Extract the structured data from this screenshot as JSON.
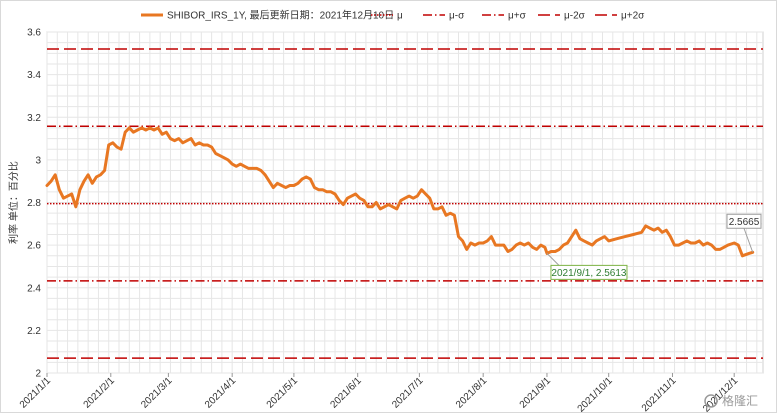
{
  "chart_data": {
    "type": "line",
    "series": [
      {
        "name": "SHIBOR_IRS_1Y, 最后更新日期：2021年12月10日",
        "color": "#e87722",
        "points": [
          [
            "2021-01-01",
            2.88
          ],
          [
            "2021-01-03",
            2.9
          ],
          [
            "2021-01-05",
            2.93
          ],
          [
            "2021-01-07",
            2.86
          ],
          [
            "2021-01-09",
            2.82
          ],
          [
            "2021-01-11",
            2.83
          ],
          [
            "2021-01-13",
            2.84
          ],
          [
            "2021-01-15",
            2.78
          ],
          [
            "2021-01-17",
            2.86
          ],
          [
            "2021-01-19",
            2.9
          ],
          [
            "2021-01-21",
            2.93
          ],
          [
            "2021-01-23",
            2.89
          ],
          [
            "2021-01-25",
            2.92
          ],
          [
            "2021-01-27",
            2.93
          ],
          [
            "2021-01-29",
            2.95
          ],
          [
            "2021-01-31",
            3.07
          ],
          [
            "2021-02-02",
            3.08
          ],
          [
            "2021-02-04",
            3.06
          ],
          [
            "2021-02-06",
            3.05
          ],
          [
            "2021-02-08",
            3.13
          ],
          [
            "2021-02-10",
            3.15
          ],
          [
            "2021-02-12",
            3.13
          ],
          [
            "2021-02-14",
            3.14
          ],
          [
            "2021-02-16",
            3.15
          ],
          [
            "2021-02-18",
            3.14
          ],
          [
            "2021-02-20",
            3.15
          ],
          [
            "2021-02-22",
            3.14
          ],
          [
            "2021-02-24",
            3.15
          ],
          [
            "2021-02-26",
            3.12
          ],
          [
            "2021-02-28",
            3.13
          ],
          [
            "2021-03-02",
            3.1
          ],
          [
            "2021-03-04",
            3.09
          ],
          [
            "2021-03-06",
            3.1
          ],
          [
            "2021-03-08",
            3.08
          ],
          [
            "2021-03-10",
            3.09
          ],
          [
            "2021-03-12",
            3.1
          ],
          [
            "2021-03-14",
            3.07
          ],
          [
            "2021-03-16",
            3.08
          ],
          [
            "2021-03-18",
            3.07
          ],
          [
            "2021-03-20",
            3.07
          ],
          [
            "2021-03-22",
            3.06
          ],
          [
            "2021-03-24",
            3.03
          ],
          [
            "2021-03-26",
            3.02
          ],
          [
            "2021-03-28",
            3.01
          ],
          [
            "2021-03-30",
            3.0
          ],
          [
            "2021-04-01",
            2.98
          ],
          [
            "2021-04-03",
            2.97
          ],
          [
            "2021-04-05",
            2.98
          ],
          [
            "2021-04-07",
            2.97
          ],
          [
            "2021-04-09",
            2.96
          ],
          [
            "2021-04-11",
            2.96
          ],
          [
            "2021-04-13",
            2.96
          ],
          [
            "2021-04-15",
            2.95
          ],
          [
            "2021-04-17",
            2.93
          ],
          [
            "2021-04-19",
            2.9
          ],
          [
            "2021-04-21",
            2.87
          ],
          [
            "2021-04-23",
            2.89
          ],
          [
            "2021-04-25",
            2.88
          ],
          [
            "2021-04-27",
            2.87
          ],
          [
            "2021-04-29",
            2.88
          ],
          [
            "2021-05-01",
            2.88
          ],
          [
            "2021-05-03",
            2.89
          ],
          [
            "2021-05-05",
            2.91
          ],
          [
            "2021-05-07",
            2.92
          ],
          [
            "2021-05-09",
            2.91
          ],
          [
            "2021-05-11",
            2.87
          ],
          [
            "2021-05-13",
            2.86
          ],
          [
            "2021-05-15",
            2.86
          ],
          [
            "2021-05-17",
            2.85
          ],
          [
            "2021-05-19",
            2.85
          ],
          [
            "2021-05-21",
            2.84
          ],
          [
            "2021-05-23",
            2.81
          ],
          [
            "2021-05-25",
            2.79
          ],
          [
            "2021-05-27",
            2.82
          ],
          [
            "2021-05-29",
            2.83
          ],
          [
            "2021-05-31",
            2.84
          ],
          [
            "2021-06-02",
            2.82
          ],
          [
            "2021-06-04",
            2.81
          ],
          [
            "2021-06-06",
            2.78
          ],
          [
            "2021-06-08",
            2.78
          ],
          [
            "2021-06-10",
            2.8
          ],
          [
            "2021-06-12",
            2.77
          ],
          [
            "2021-06-14",
            2.78
          ],
          [
            "2021-06-16",
            2.79
          ],
          [
            "2021-06-18",
            2.78
          ],
          [
            "2021-06-20",
            2.77
          ],
          [
            "2021-06-22",
            2.81
          ],
          [
            "2021-06-24",
            2.82
          ],
          [
            "2021-06-26",
            2.83
          ],
          [
            "2021-06-28",
            2.82
          ],
          [
            "2021-06-30",
            2.83
          ],
          [
            "2021-07-02",
            2.86
          ],
          [
            "2021-07-04",
            2.84
          ],
          [
            "2021-07-06",
            2.82
          ],
          [
            "2021-07-08",
            2.77
          ],
          [
            "2021-07-10",
            2.77
          ],
          [
            "2021-07-12",
            2.78
          ],
          [
            "2021-07-14",
            2.74
          ],
          [
            "2021-07-16",
            2.75
          ],
          [
            "2021-07-18",
            2.74
          ],
          [
            "2021-07-20",
            2.64
          ],
          [
            "2021-07-22",
            2.62
          ],
          [
            "2021-07-24",
            2.58
          ],
          [
            "2021-07-26",
            2.61
          ],
          [
            "2021-07-28",
            2.6
          ],
          [
            "2021-07-30",
            2.61
          ],
          [
            "2021-08-01",
            2.61
          ],
          [
            "2021-08-03",
            2.62
          ],
          [
            "2021-08-05",
            2.64
          ],
          [
            "2021-08-07",
            2.6
          ],
          [
            "2021-08-09",
            2.6
          ],
          [
            "2021-08-11",
            2.6
          ],
          [
            "2021-08-13",
            2.57
          ],
          [
            "2021-08-15",
            2.58
          ],
          [
            "2021-08-17",
            2.6
          ],
          [
            "2021-08-19",
            2.61
          ],
          [
            "2021-08-21",
            2.6
          ],
          [
            "2021-08-23",
            2.61
          ],
          [
            "2021-08-25",
            2.59
          ],
          [
            "2021-08-27",
            2.58
          ],
          [
            "2021-08-29",
            2.6
          ],
          [
            "2021-08-31",
            2.59
          ],
          [
            "2021-09-01",
            2.5613
          ],
          [
            "2021-09-03",
            2.57
          ],
          [
            "2021-09-05",
            2.57
          ],
          [
            "2021-09-07",
            2.58
          ],
          [
            "2021-09-09",
            2.6
          ],
          [
            "2021-09-11",
            2.61
          ],
          [
            "2021-09-13",
            2.64
          ],
          [
            "2021-09-15",
            2.67
          ],
          [
            "2021-09-17",
            2.63
          ],
          [
            "2021-09-19",
            2.62
          ],
          [
            "2021-09-21",
            2.61
          ],
          [
            "2021-09-23",
            2.6
          ],
          [
            "2021-09-25",
            2.62
          ],
          [
            "2021-09-27",
            2.63
          ],
          [
            "2021-09-29",
            2.64
          ],
          [
            "2021-10-01",
            2.62
          ],
          [
            "2021-10-05",
            2.63
          ],
          [
            "2021-10-09",
            2.64
          ],
          [
            "2021-10-13",
            2.65
          ],
          [
            "2021-10-17",
            2.66
          ],
          [
            "2021-10-19",
            2.69
          ],
          [
            "2021-10-21",
            2.68
          ],
          [
            "2021-10-23",
            2.67
          ],
          [
            "2021-10-25",
            2.68
          ],
          [
            "2021-10-27",
            2.66
          ],
          [
            "2021-10-29",
            2.67
          ],
          [
            "2021-10-31",
            2.64
          ],
          [
            "2021-11-02",
            2.6
          ],
          [
            "2021-11-04",
            2.6
          ],
          [
            "2021-11-06",
            2.61
          ],
          [
            "2021-11-08",
            2.62
          ],
          [
            "2021-11-10",
            2.61
          ],
          [
            "2021-11-12",
            2.61
          ],
          [
            "2021-11-14",
            2.62
          ],
          [
            "2021-11-16",
            2.6
          ],
          [
            "2021-11-18",
            2.61
          ],
          [
            "2021-11-20",
            2.6
          ],
          [
            "2021-11-22",
            2.58
          ],
          [
            "2021-11-24",
            2.58
          ],
          [
            "2021-11-26",
            2.59
          ],
          [
            "2021-11-28",
            2.6
          ],
          [
            "2021-12-01",
            2.61
          ],
          [
            "2021-12-03",
            2.6
          ],
          [
            "2021-12-05",
            2.55
          ],
          [
            "2021-12-08",
            2.56
          ],
          [
            "2021-12-10",
            2.5665
          ]
        ]
      }
    ],
    "reference_lines": [
      {
        "label": "μ",
        "value": 2.795,
        "color": "#c00000",
        "style": "dotted"
      },
      {
        "label": "μ-σ",
        "value": 2.432,
        "color": "#c00000",
        "style": "dashdot"
      },
      {
        "label": "μ+σ",
        "value": 3.158,
        "color": "#c00000",
        "style": "dashdot"
      },
      {
        "label": "μ-2σ",
        "value": 2.07,
        "color": "#c00000",
        "style": "dashed"
      },
      {
        "label": "μ+2σ",
        "value": 3.52,
        "color": "#c00000",
        "style": "dashed"
      }
    ],
    "xlim": [
      "2021-01-01",
      "2021-12-15"
    ],
    "ylim": [
      2.0,
      3.6
    ],
    "y_ticks": [
      2,
      2.2,
      2.4,
      2.6,
      2.8,
      3,
      3.2,
      3.4,
      3.6
    ],
    "x_ticks": [
      [
        "2021-01-01",
        "2021/1/1"
      ],
      [
        "2021-02-01",
        "2021/2/1"
      ],
      [
        "2021-03-01",
        "2021/3/1"
      ],
      [
        "2021-04-01",
        "2021/4/1"
      ],
      [
        "2021-05-01",
        "2021/5/1"
      ],
      [
        "2021-06-01",
        "2021/6/1"
      ],
      [
        "2021-07-01",
        "2021/7/1"
      ],
      [
        "2021-08-01",
        "2021/8/1"
      ],
      [
        "2021-09-01",
        "2021/9/1"
      ],
      [
        "2021-10-01",
        "2021/10/1"
      ],
      [
        "2021-11-01",
        "2021/11/1"
      ],
      [
        "2021-12-01",
        "2021/12/1"
      ]
    ],
    "ylabel": "利率 单位：百分比",
    "legend_position": "top",
    "grid": true,
    "annotations": [
      {
        "text": "2021/9/1, 2.5613",
        "x": "2021-09-01",
        "y": 2.5613,
        "border_color": "#7cb342",
        "text_color": "#2e7d32"
      },
      {
        "text": "2.5665",
        "x": "2021-12-10",
        "y": 2.5665,
        "border_color": "#9e9e9e",
        "text_color": "#333333"
      }
    ]
  },
  "watermark": "格隆汇"
}
